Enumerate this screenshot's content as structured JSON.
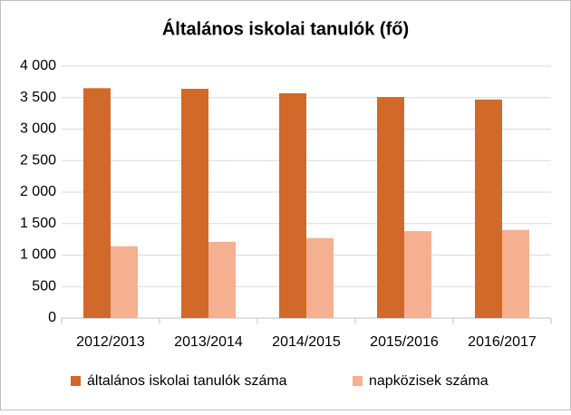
{
  "chart_data": {
    "type": "bar",
    "title": "Általános iskolai tanulók (fő)",
    "categories": [
      "2012/2013",
      "2013/2014",
      "2014/2015",
      "2015/2016",
      "2016/2017"
    ],
    "series": [
      {
        "name": "általános iskolai tanulók száma",
        "color": "#d0692a",
        "values": [
          3650,
          3640,
          3570,
          3510,
          3470
        ]
      },
      {
        "name": "napközisek száma",
        "color": "#f4b090",
        "values": [
          1140,
          1210,
          1270,
          1380,
          1400
        ]
      }
    ],
    "ylim": [
      0,
      4000
    ],
    "yticks": [
      0,
      500,
      {
        "value": 1000,
        "label": "1 000"
      },
      {
        "value": 1500,
        "label": "1 500"
      },
      {
        "value": 2000,
        "label": "2 000"
      },
      {
        "value": 2500,
        "label": "2 500"
      },
      {
        "value": 3000,
        "label": "3 000"
      },
      {
        "value": 3500,
        "label": "3 500"
      },
      {
        "value": 4000,
        "label": "4 000"
      }
    ],
    "grid": true,
    "legend": "bottom"
  }
}
